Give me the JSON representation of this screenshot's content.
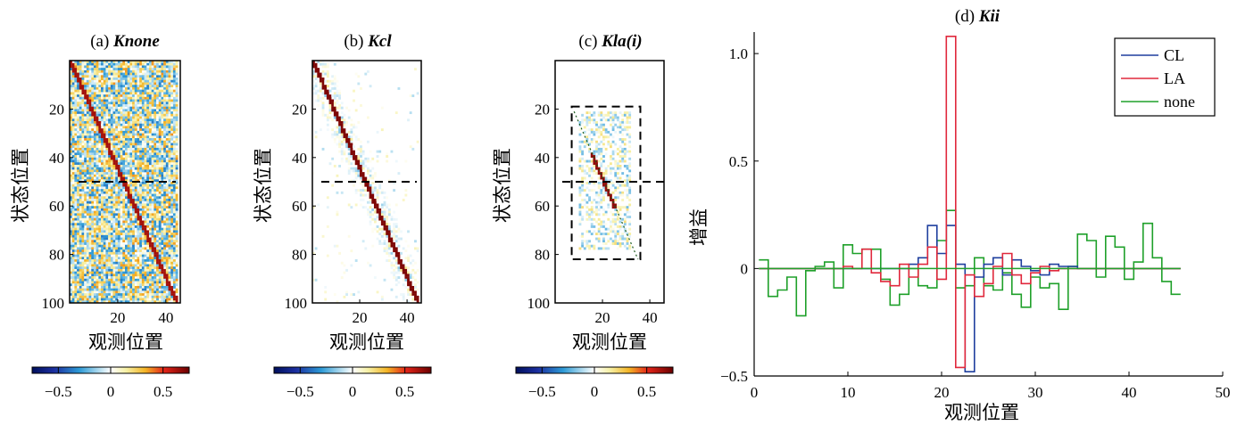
{
  "chart_data": [
    {
      "type": "heatmap",
      "title_prefix": "(a)",
      "title_main": "Knone",
      "xlabel": "观测位置",
      "ylabel": "状态位置",
      "xticks": [
        20,
        40
      ],
      "yticks": [
        20,
        40,
        60,
        80,
        100
      ],
      "xlim": [
        0,
        46
      ],
      "ylim": [
        0,
        100
      ],
      "matrix_size": [
        100,
        45
      ],
      "diagonal": {
        "from": [
          1,
          1
        ],
        "to": [
          45,
          100
        ]
      },
      "dashed_row": 50,
      "background": "dense noise",
      "colorbar": {
        "ticks": [
          "−0.5",
          "0",
          "0.5"
        ],
        "min": -0.75,
        "max": 0.75
      }
    },
    {
      "type": "heatmap",
      "title_prefix": "(b)",
      "title_main": "Kcl",
      "xlabel": "观测位置",
      "ylabel": "状态位置",
      "xticks": [
        20,
        40
      ],
      "yticks": [
        20,
        40,
        60,
        80,
        100
      ],
      "xlim": [
        0,
        46
      ],
      "ylim": [
        0,
        100
      ],
      "matrix_size": [
        100,
        45
      ],
      "diagonal": {
        "from": [
          1,
          1
        ],
        "to": [
          45,
          100
        ]
      },
      "dashed_row": 50,
      "background": "sparse band",
      "colorbar": {
        "ticks": [
          "−0.5",
          "0",
          "0.5"
        ],
        "min": -0.75,
        "max": 0.75
      }
    },
    {
      "type": "heatmap",
      "title_prefix": "(c)",
      "title_main": "Kla(i)",
      "xlabel": "观测位置",
      "ylabel": "状态位置",
      "xticks": [
        20,
        40
      ],
      "yticks": [
        20,
        40,
        60,
        80,
        100
      ],
      "xlim": [
        0,
        46
      ],
      "ylim": [
        0,
        100
      ],
      "matrix_size": [
        100,
        45
      ],
      "diagonal": {
        "from": [
          8,
          21
        ],
        "to": [
          35,
          82
        ]
      },
      "dashed_row": 50,
      "dashed_box": {
        "x": [
          7,
          36
        ],
        "y": [
          19,
          82
        ]
      },
      "background": "localized",
      "colorbar": {
        "ticks": [
          "−0.5",
          "0",
          "0.5"
        ],
        "min": -0.75,
        "max": 0.75
      }
    },
    {
      "type": "line",
      "step": true,
      "title_prefix": "(d)",
      "title_main": "Kii",
      "xlabel": "观测位置",
      "ylabel": "增益",
      "xlim": [
        0,
        50
      ],
      "ylim": [
        -0.5,
        1.1
      ],
      "xticks": [
        0,
        10,
        20,
        30,
        40,
        50
      ],
      "yticks": [
        -0.5,
        0,
        0.5,
        1.0
      ],
      "ytick_labels": [
        "−0.5",
        "0",
        "0.5",
        "1.0"
      ],
      "legend_position": "top-right",
      "x": [
        1,
        2,
        3,
        4,
        5,
        6,
        7,
        8,
        9,
        10,
        11,
        12,
        13,
        14,
        15,
        16,
        17,
        18,
        19,
        20,
        21,
        22,
        23,
        24,
        25,
        26,
        27,
        28,
        29,
        30,
        31,
        32,
        33,
        34,
        35,
        36,
        37,
        38,
        39,
        40,
        41,
        42,
        43,
        44,
        45
      ],
      "series": [
        {
          "name": "CL",
          "color": "#1f3f9e",
          "values": [
            0,
            0,
            0,
            0,
            0,
            0,
            0,
            0,
            0,
            0,
            0,
            0,
            0,
            0,
            0,
            0,
            0.02,
            0.05,
            0.2,
            0.07,
            0.2,
            0.02,
            -0.48,
            -0.04,
            0.02,
            0.05,
            -0.03,
            0.04,
            0.01,
            -0.01,
            -0.03,
            0.02,
            0.01,
            0.01,
            0,
            0,
            0,
            0,
            0,
            0,
            0,
            0,
            0,
            0,
            0
          ]
        },
        {
          "name": "LA",
          "color": "#e0283c",
          "values": [
            0,
            0,
            0,
            0,
            0,
            0,
            0,
            0,
            0,
            0.01,
            0,
            0.09,
            -0.02,
            -0.06,
            -0.08,
            0.02,
            -0.04,
            0.02,
            0.1,
            -0.05,
            1.08,
            -0.46,
            -0.03,
            -0.13,
            -0.07,
            0.01,
            0.07,
            -0.03,
            -0.07,
            -0.02,
            0.01,
            -0.01,
            0,
            0,
            0,
            0,
            0,
            0,
            0,
            0,
            0,
            0,
            0,
            0,
            0
          ]
        },
        {
          "name": "none",
          "color": "#1fa02a",
          "values": [
            0.04,
            -0.13,
            -0.1,
            -0.04,
            -0.22,
            -0.01,
            0.01,
            0.03,
            -0.09,
            0.11,
            0.07,
            0.09,
            0.09,
            -0.05,
            -0.17,
            -0.12,
            0,
            -0.08,
            -0.09,
            0.13,
            0.27,
            -0.09,
            -0.08,
            0.05,
            -0.08,
            -0.1,
            -0.02,
            -0.12,
            -0.18,
            -0.04,
            -0.09,
            -0.07,
            -0.19,
            0.01,
            0.16,
            0.13,
            -0.04,
            0.15,
            0.1,
            -0.05,
            0.03,
            0.21,
            0.05,
            -0.06,
            -0.12
          ]
        }
      ]
    }
  ]
}
